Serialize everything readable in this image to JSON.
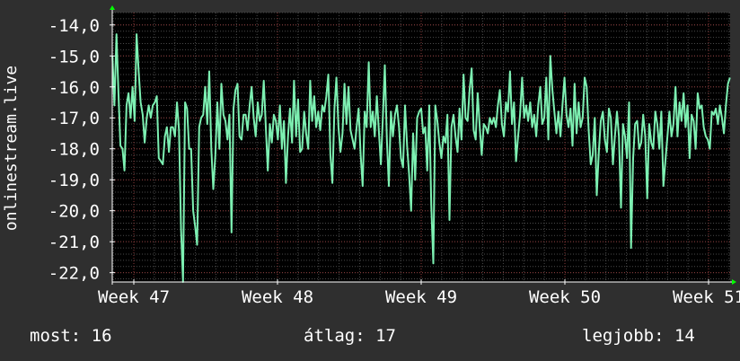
{
  "stats": {
    "now": "most: 16",
    "avg": "átlag: 17",
    "best": "legjobb: 14"
  },
  "colors": {
    "background": "#2f2f2f",
    "plot_background": "#000000",
    "line": "#7df0b2",
    "grid_major": "#8b3a3a",
    "grid_minor": "#4a4a4a",
    "axis": "#ffffff",
    "arrow": "#00ff00"
  },
  "chart_data": {
    "type": "line",
    "title": "",
    "xlabel": "",
    "ylabel": "onlinestream.live",
    "ylim": [
      -22.3,
      -13.6
    ],
    "yticks": [
      -14,
      -15,
      -16,
      -17,
      -18,
      -19,
      -20,
      -21,
      -22
    ],
    "ytick_labels": [
      "-14,0",
      "-15,0",
      "-16,0",
      "-17,0",
      "-18,0",
      "-19,0",
      "-20,0",
      "-21,0",
      "-22,0"
    ],
    "xlim": [
      46.85,
      51.15
    ],
    "xticks": [
      47,
      48,
      49,
      50,
      51
    ],
    "xtick_labels": [
      "Week 47",
      "Week 48",
      "Week 49",
      "Week 50",
      "Week 51"
    ],
    "grid": true,
    "series": [
      {
        "values": [
          -15.0,
          -16.6,
          -14.3,
          -16.2,
          -17.9,
          -18.0,
          -18.7,
          -16.6,
          -16.2,
          -17.0,
          -16.0,
          -17.1,
          -14.3,
          -15.5,
          -16.5,
          -16.9,
          -17.8,
          -17.0,
          -16.6,
          -17.0,
          -16.6,
          -16.5,
          -16.3,
          -18.3,
          -18.4,
          -18.5,
          -17.6,
          -17.3,
          -18.1,
          -17.3,
          -17.3,
          -17.6,
          -16.5,
          -17.4,
          -20.6,
          -22.3,
          -16.5,
          -16.7,
          -18.0,
          -18.0,
          -20.0,
          -20.5,
          -21.1,
          -17.3,
          -17.0,
          -16.9,
          -16.0,
          -17.2,
          -15.5,
          -18.0,
          -19.3,
          -18.2,
          -16.5,
          -18.0,
          -15.9,
          -16.9,
          -17.1,
          -17.7,
          -16.9,
          -20.7,
          -16.7,
          -16.1,
          -15.9,
          -17.6,
          -17.7,
          -16.9,
          -16.9,
          -17.4,
          -16.6,
          -16.0,
          -17.0,
          -17.6,
          -16.5,
          -17.1,
          -16.9,
          -15.8,
          -17.3,
          -18.7,
          -17.2,
          -17.8,
          -16.9,
          -17.1,
          -17.7,
          -16.6,
          -18.0,
          -17.1,
          -19.1,
          -17.6,
          -16.7,
          -17.8,
          -15.8,
          -17.6,
          -16.4,
          -18.1,
          -18.0,
          -16.8,
          -17.5,
          -18.0,
          -15.8,
          -17.1,
          -16.3,
          -17.3,
          -16.8,
          -17.4,
          -16.6,
          -16.8,
          -16.3,
          -15.6,
          -18.2,
          -19.1,
          -16.7,
          -15.7,
          -17.3,
          -18.1,
          -17.5,
          -15.9,
          -17.2,
          -16.0,
          -17.4,
          -17.7,
          -18.0,
          -17.3,
          -16.7,
          -18.2,
          -19.2,
          -16.8,
          -17.3,
          -15.2,
          -17.3,
          -16.8,
          -17.6,
          -16.3,
          -17.4,
          -18.5,
          -17.0,
          -15.3,
          -17.7,
          -19.2,
          -16.8,
          -17.6,
          -16.9,
          -16.6,
          -17.3,
          -18.3,
          -18.6,
          -16.6,
          -17.9,
          -18.8,
          -20.0,
          -17.5,
          -19.0,
          -17.0,
          -16.8,
          -16.7,
          -17.5,
          -17.3,
          -18.7,
          -16.6,
          -19.8,
          -21.7,
          -16.6,
          -17.1,
          -17.8,
          -18.3,
          -17.6,
          -17.8,
          -16.9,
          -20.3,
          -17.3,
          -16.9,
          -17.6,
          -18.1,
          -16.7,
          -17.7,
          -15.6,
          -17.0,
          -17.1,
          -16.1,
          -15.4,
          -17.4,
          -17.7,
          -16.2,
          -17.3,
          -18.2,
          -17.2,
          -17.3,
          -17.5,
          -17.0,
          -17.2,
          -17.0,
          -17.3,
          -16.6,
          -16.1,
          -17.2,
          -17.6,
          -16.5,
          -16.8,
          -15.5,
          -17.2,
          -16.5,
          -18.4,
          -17.6,
          -16.9,
          -15.7,
          -17.0,
          -16.6,
          -17.1,
          -16.5,
          -17.3,
          -16.9,
          -17.6,
          -16.6,
          -16.0,
          -17.2,
          -17.0,
          -15.7,
          -17.7,
          -15.0,
          -16.1,
          -16.8,
          -17.5,
          -16.8,
          -17.6,
          -16.6,
          -15.7,
          -16.9,
          -17.3,
          -16.7,
          -17.9,
          -15.9,
          -17.5,
          -16.5,
          -17.3,
          -17.0,
          -15.7,
          -16.0,
          -17.4,
          -18.5,
          -18.2,
          -17.0,
          -19.5,
          -18.1,
          -17.1,
          -16.8,
          -17.7,
          -18.1,
          -16.7,
          -17.0,
          -18.5,
          -17.6,
          -16.8,
          -17.6,
          -19.9,
          -17.2,
          -17.6,
          -18.3,
          -16.5,
          -21.2,
          -18.3,
          -17.2,
          -17.1,
          -18.0,
          -17.8,
          -16.9,
          -17.6,
          -19.6,
          -17.2,
          -17.8,
          -18.0,
          -16.8,
          -17.2,
          -18.0,
          -16.8,
          -19.2,
          -18.4,
          -17.6,
          -16.8,
          -17.6,
          -17.2,
          -16.0,
          -17.6,
          -16.5,
          -17.1,
          -16.2,
          -17.3,
          -16.6,
          -18.3,
          -16.9,
          -17.1,
          -18.0,
          -16.2,
          -16.7,
          -16.6,
          -17.3,
          -17.6,
          -17.7,
          -18.0,
          -16.8,
          -16.9,
          -16.7,
          -17.2,
          -16.6,
          -17.0,
          -17.5,
          -16.6,
          -15.9,
          -15.7
        ]
      }
    ]
  }
}
